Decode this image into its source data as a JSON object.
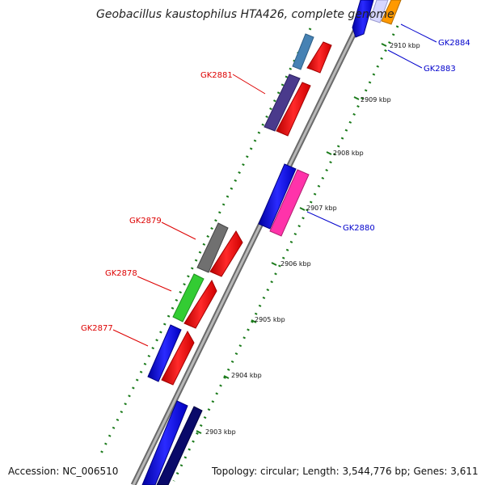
{
  "title": "Geobacillus kaustophilus HTA426, complete genome",
  "footer": {
    "accession": "Accession: NC_006510",
    "topology": "Topology: circular; Length: 3,544,776 bp; Genes: 3,611"
  },
  "ticks": [
    {
      "label": "2903 kbp"
    },
    {
      "label": "2904 kbp"
    },
    {
      "label": "2905 kbp"
    },
    {
      "label": "2906 kbp"
    },
    {
      "label": "2907 kbp"
    },
    {
      "label": "2908 kbp"
    },
    {
      "label": "2909 kbp"
    },
    {
      "label": "2910 kbp"
    }
  ],
  "gene_labels": [
    {
      "label": "GK2884",
      "color": "#0000cc"
    },
    {
      "label": "GK2883",
      "color": "#0000cc"
    },
    {
      "label": "GK2881",
      "color": "#dd0000"
    },
    {
      "label": "GK2880",
      "color": "#0000cc"
    },
    {
      "label": "GK2879",
      "color": "#dd0000"
    },
    {
      "label": "GK2878",
      "color": "#dd0000"
    },
    {
      "label": "GK2877",
      "color": "#dd0000"
    }
  ],
  "colors": {
    "backbone": "#8c8c8c",
    "tick_dots": "#1a7a1a",
    "blue": "#1010e0",
    "red": "#ee1111",
    "steelblue": "#4682b4",
    "purple": "#4a3a8c",
    "pink": "#ff33aa",
    "gray": "#707070",
    "green": "#33cc33",
    "navy": "#0a0a6a",
    "orange": "#ff9900"
  }
}
